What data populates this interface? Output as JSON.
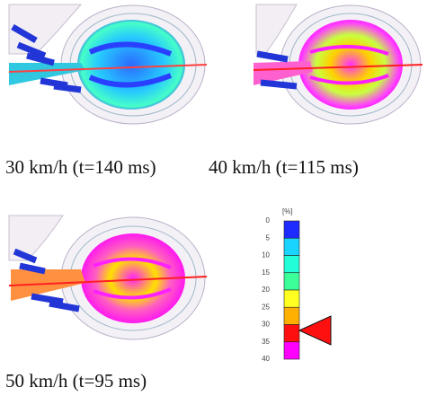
{
  "panels": [
    {
      "caption": "30 km/h (t=140 ms)"
    },
    {
      "caption": "40 km/h (t=115 ms)"
    },
    {
      "caption": "50 km/h (t=95 ms)"
    }
  ],
  "legend": {
    "unit": "[%]",
    "ticks": [
      0,
      5,
      10,
      15,
      20,
      25,
      30,
      35,
      40
    ],
    "colors": [
      "#1f2cff",
      "#18d4ff",
      "#22ffd8",
      "#3cff9a",
      "#ffff22",
      "#ffb000",
      "#ff1010",
      "#ff00ff"
    ]
  }
}
